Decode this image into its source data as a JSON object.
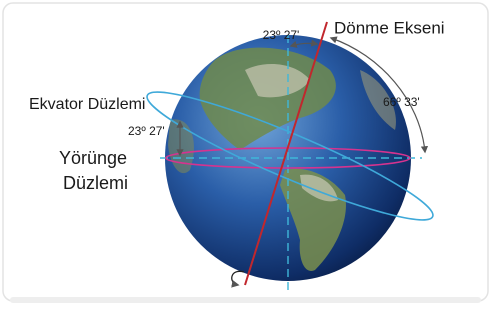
{
  "labels": {
    "axis_angle": "23º 27'",
    "rotation_axis": "Dönme Ekseni",
    "equator_plane": "Ekvator Düzlemi",
    "complement_angle": "66º 33'",
    "orbit_angle": "23º 27'",
    "orbit_plane_line1": "Yörünge",
    "orbit_plane_line2": "Düzlemi"
  }
}
